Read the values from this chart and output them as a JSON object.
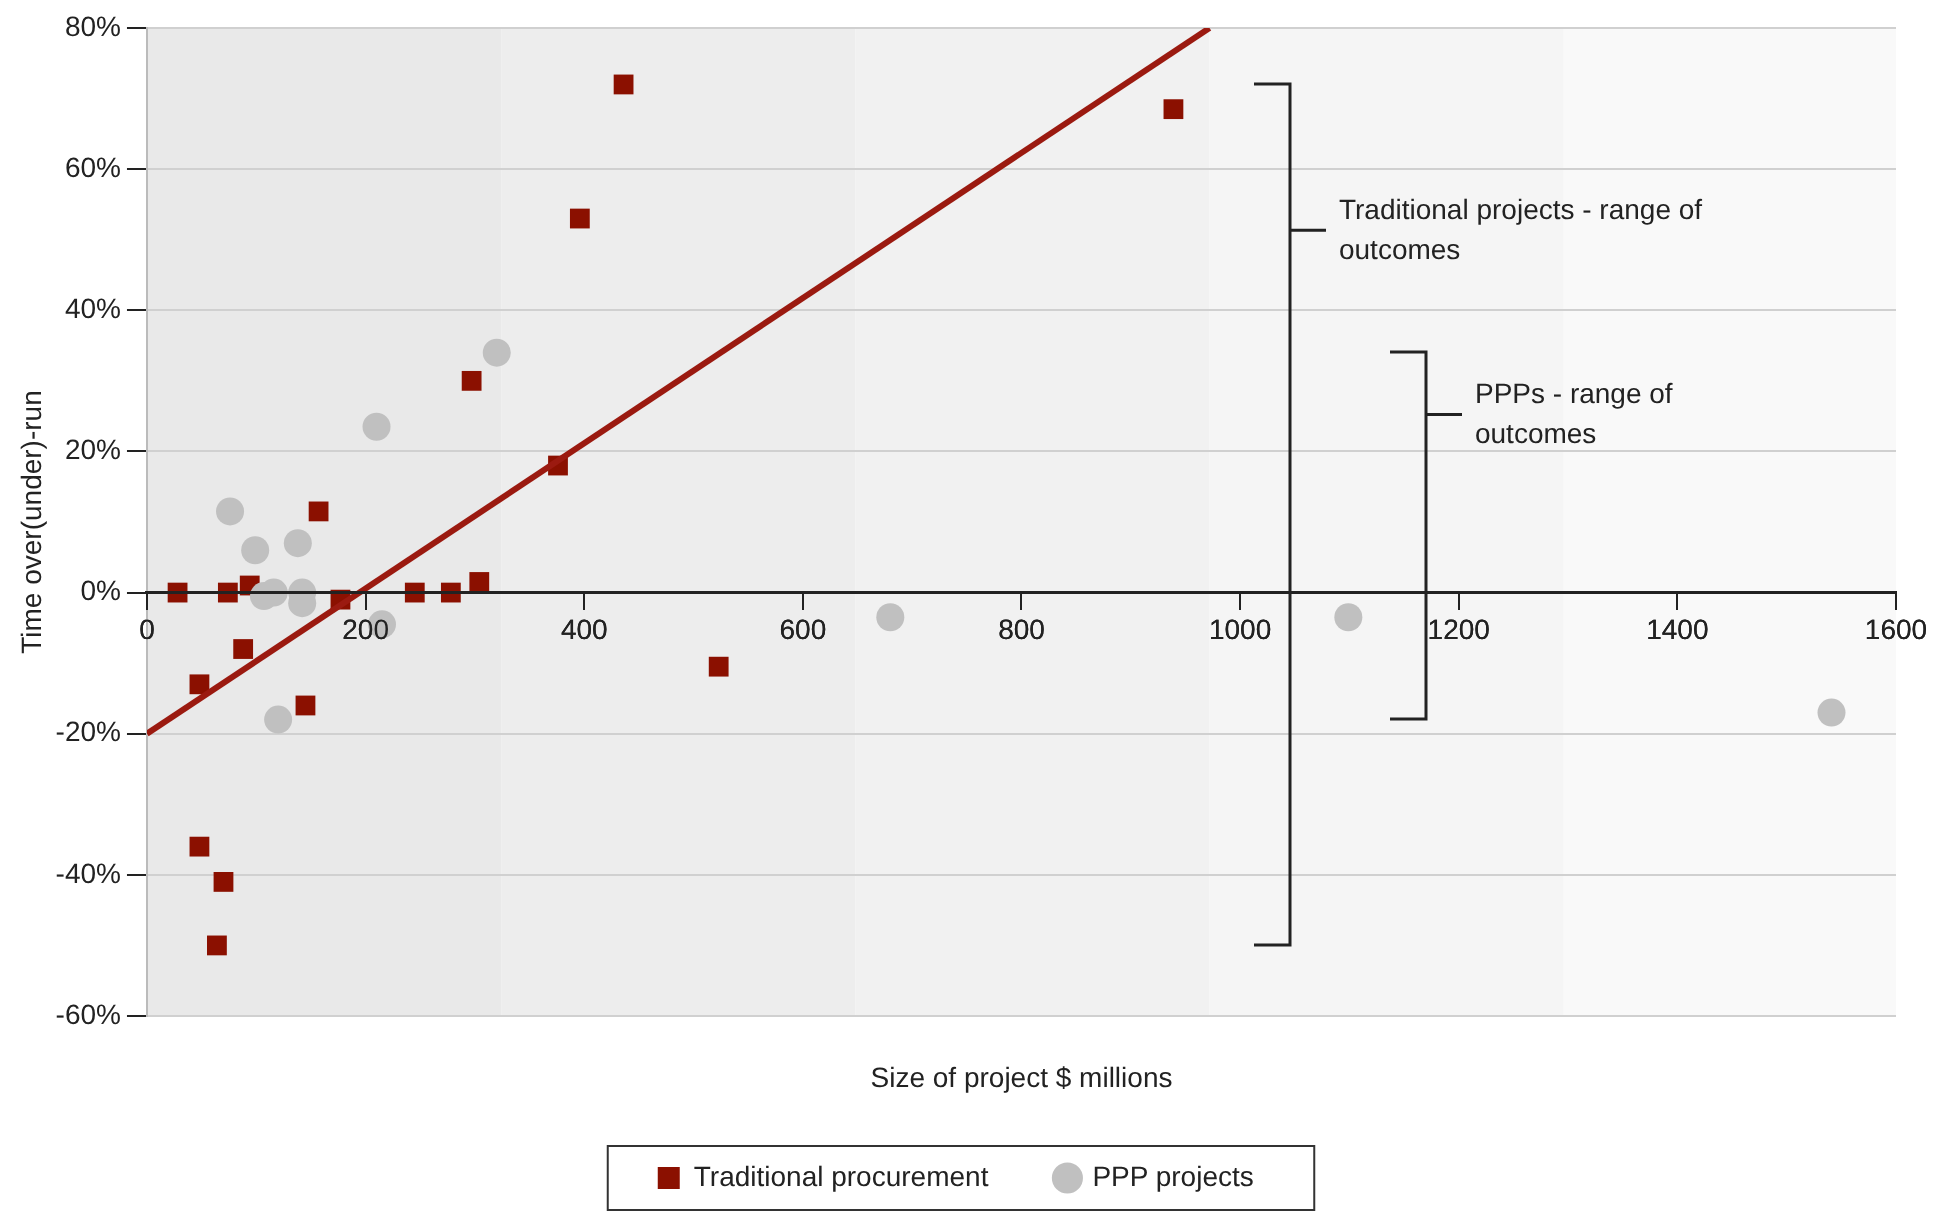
{
  "chart_data": {
    "type": "scatter",
    "xlabel": "Size of project $ millions",
    "ylabel": "Time over(under)-run",
    "xlim": [
      0,
      1600
    ],
    "xticks": [
      0,
      200,
      400,
      600,
      800,
      1000,
      1200,
      1400,
      1600
    ],
    "ylim": [
      -60,
      80
    ],
    "yticks": [
      {
        "value": -60,
        "label": "-60%"
      },
      {
        "value": -40,
        "label": "-40%"
      },
      {
        "value": -20,
        "label": "-20%"
      },
      {
        "value": 0,
        "label": "0%"
      },
      {
        "value": 20,
        "label": "20%"
      },
      {
        "value": 40,
        "label": "40%"
      },
      {
        "value": 60,
        "label": "60%"
      },
      {
        "value": 80,
        "label": "80%"
      }
    ],
    "grid": "y",
    "legend": "bottom",
    "series": [
      {
        "name": "Traditional procurement",
        "type": "scatter",
        "marker": "square",
        "color": "#8b1000",
        "x": [
          28,
          48,
          48,
          70,
          64,
          74,
          94,
          88,
          157,
          145,
          177,
          245,
          278,
          304,
          297,
          376,
          396,
          436,
          523,
          939
        ],
        "values": [
          0,
          -13,
          -36,
          -41,
          -50,
          0,
          1,
          -8,
          11.5,
          -16,
          -1,
          0,
          0,
          1.5,
          30,
          18,
          53,
          72,
          -10.5,
          68.5
        ]
      },
      {
        "name": "PPP projects",
        "type": "scatter",
        "marker": "circle",
        "color": "#c0c0c0",
        "x": [
          76,
          99,
          138,
          107,
          116,
          142,
          142,
          120,
          210,
          215,
          320,
          680,
          1099,
          1541
        ],
        "values": [
          11.5,
          6,
          7,
          -0.5,
          0,
          0,
          -1.5,
          -18,
          23.5,
          -4.5,
          34,
          -3.5,
          -3.5,
          -17
        ]
      },
      {
        "type": "line",
        "marker": "none",
        "line_style": "solid",
        "color": "#9b1a10",
        "x": [
          0,
          972
        ],
        "values": [
          -20,
          80
        ]
      }
    ],
    "bands": [
      {
        "axis": "x",
        "from": 0,
        "to": 324,
        "color": "#e9e9e9"
      },
      {
        "axis": "x",
        "from": 324,
        "to": 648,
        "color": "#ededed"
      },
      {
        "axis": "x",
        "from": 648,
        "to": 972,
        "color": "#f1f1f1"
      },
      {
        "axis": "x",
        "from": 972,
        "to": 1296,
        "color": "#f5f5f5"
      },
      {
        "axis": "x",
        "from": 1296,
        "to": 1600,
        "color": "#f9f9f9"
      }
    ],
    "annotations": [
      "Traditional projects - range of outcomes",
      "PPPs - range of outcomes"
    ]
  }
}
